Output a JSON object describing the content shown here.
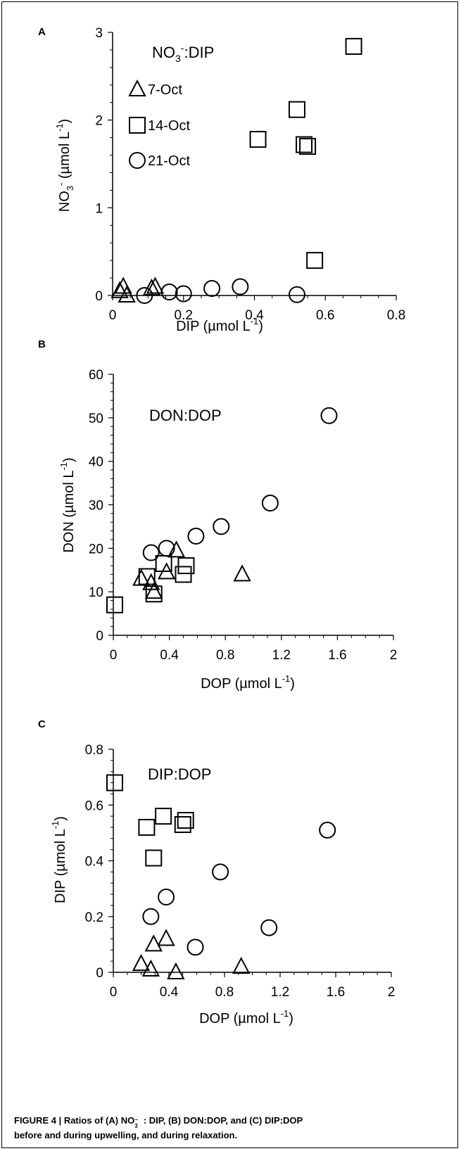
{
  "chart_data": [
    {
      "type": "scatter",
      "panel_label": "A",
      "title": "NO3-:DIP",
      "title_parts": {
        "base": "NO",
        "sub": "3",
        "sup": "-",
        "rest": ":DIP"
      },
      "xlabel": "DIP (µmol  L-1)",
      "xlabel_parts": {
        "base": "DIP (",
        "mu": "µ",
        "rest": "mol  L",
        "sup": "-1",
        "end": ")"
      },
      "ylabel": "NO3- (µmol L-1)",
      "ylabel_parts": {
        "base": "NO",
        "sub": "3",
        "sup": "-",
        "mid": " (",
        "mu": "µ",
        "rest": "mol L",
        "sup2": "-1",
        "end": ")"
      },
      "xlim": [
        0,
        0.8
      ],
      "ylim": [
        0,
        3
      ],
      "xticks": [
        "0",
        "0.2",
        "0.4",
        "0.6",
        "0.8"
      ],
      "xtick_values": [
        0,
        0.2,
        0.4,
        0.6,
        0.8
      ],
      "yticks": [
        "0",
        "1",
        "2",
        "3"
      ],
      "ytick_values": [
        0,
        1,
        2,
        3
      ],
      "legend": [
        {
          "name": "7-Oct",
          "marker": "triangle"
        },
        {
          "name": "14-Oct",
          "marker": "square"
        },
        {
          "name": "21-Oct",
          "marker": "circle"
        }
      ],
      "series": [
        {
          "name": "7-Oct",
          "marker": "triangle",
          "points": [
            [
              0.02,
              0.05
            ],
            [
              0.03,
              0.1
            ],
            [
              0.04,
              0.0
            ],
            [
              0.11,
              0.08
            ],
            [
              0.12,
              0.1
            ]
          ]
        },
        {
          "name": "14-Oct",
          "marker": "square",
          "points": [
            [
              0.41,
              1.78
            ],
            [
              0.52,
              2.12
            ],
            [
              0.54,
              1.72
            ],
            [
              0.55,
              1.7
            ],
            [
              0.57,
              0.4
            ],
            [
              0.68,
              2.84
            ]
          ]
        },
        {
          "name": "21-Oct",
          "marker": "circle",
          "points": [
            [
              0.09,
              0.0
            ],
            [
              0.16,
              0.04
            ],
            [
              0.2,
              0.02
            ],
            [
              0.28,
              0.08
            ],
            [
              0.36,
              0.1
            ],
            [
              0.52,
              0.01
            ]
          ]
        }
      ]
    },
    {
      "type": "scatter",
      "panel_label": "B",
      "title": "DON:DOP",
      "xlabel": "DOP (µmol L-1)",
      "xlabel_parts": {
        "base": "DOP (",
        "mu": "µ",
        "rest": "mol L",
        "sup": "-1",
        "end": ")"
      },
      "ylabel": "DON (µmol L-1)",
      "ylabel_parts": {
        "base": "DON (",
        "mu": "µ",
        "rest": "mol L",
        "sup": "-1",
        "end": ")"
      },
      "xlim": [
        0,
        2
      ],
      "ylim": [
        0,
        60
      ],
      "xticks": [
        "0",
        "0.4",
        "0.8",
        "1.2",
        "1.6",
        "2"
      ],
      "xtick_values": [
        0,
        0.4,
        0.8,
        1.2,
        1.6,
        2
      ],
      "yticks": [
        "0",
        "10",
        "20",
        "30",
        "40",
        "50",
        "60"
      ],
      "ytick_values": [
        0,
        10,
        20,
        30,
        40,
        50,
        60
      ],
      "series": [
        {
          "name": "7-Oct",
          "marker": "triangle",
          "points": [
            [
              0.2,
              13
            ],
            [
              0.27,
              12
            ],
            [
              0.29,
              10
            ],
            [
              0.38,
              14.5
            ],
            [
              0.45,
              19.5
            ],
            [
              0.92,
              14
            ]
          ]
        },
        {
          "name": "14-Oct",
          "marker": "square",
          "points": [
            [
              0.01,
              7
            ],
            [
              0.24,
              13.5
            ],
            [
              0.29,
              9.5
            ],
            [
              0.36,
              16.5
            ],
            [
              0.5,
              14
            ],
            [
              0.52,
              16
            ]
          ]
        },
        {
          "name": "21-Oct",
          "marker": "circle",
          "points": [
            [
              0.27,
              19
            ],
            [
              0.38,
              20
            ],
            [
              0.59,
              22.8
            ],
            [
              0.77,
              25
            ],
            [
              1.12,
              30.4
            ],
            [
              1.54,
              50.5
            ]
          ]
        }
      ]
    },
    {
      "type": "scatter",
      "panel_label": "C",
      "title": "DIP:DOP",
      "xlabel": "DOP (µmol L-1)",
      "xlabel_parts": {
        "base": "DOP (",
        "mu": "µ",
        "rest": "mol L",
        "sup": "-1",
        "end": ")"
      },
      "ylabel": "DIP (µmol L-1)",
      "ylabel_parts": {
        "base": "DIP (",
        "mu": "µ",
        "rest": "mol L",
        "sup": "-1",
        "end": ")"
      },
      "xlim": [
        0,
        2
      ],
      "ylim": [
        0,
        0.8
      ],
      "xticks": [
        "0",
        "0.4",
        "0.8",
        "1.2",
        "1.6",
        "2"
      ],
      "xtick_values": [
        0,
        0.4,
        0.8,
        1.2,
        1.6,
        2
      ],
      "yticks": [
        "0",
        "0.2",
        "0.4",
        "0.6",
        "0.8"
      ],
      "ytick_values": [
        0,
        0.2,
        0.4,
        0.6,
        0.8
      ],
      "series": [
        {
          "name": "7-Oct",
          "marker": "triangle",
          "points": [
            [
              0.2,
              0.03
            ],
            [
              0.27,
              0.01
            ],
            [
              0.29,
              0.1
            ],
            [
              0.38,
              0.12
            ],
            [
              0.45,
              0.0
            ],
            [
              0.92,
              0.02
            ]
          ]
        },
        {
          "name": "14-Oct",
          "marker": "square",
          "points": [
            [
              0.01,
              0.68
            ],
            [
              0.24,
              0.52
            ],
            [
              0.29,
              0.41
            ],
            [
              0.36,
              0.56
            ],
            [
              0.5,
              0.53
            ],
            [
              0.52,
              0.545
            ]
          ]
        },
        {
          "name": "21-Oct",
          "marker": "circle",
          "points": [
            [
              0.27,
              0.2
            ],
            [
              0.38,
              0.27
            ],
            [
              0.59,
              0.09
            ],
            [
              0.77,
              0.36
            ],
            [
              1.12,
              0.16
            ],
            [
              1.54,
              0.51
            ]
          ]
        }
      ]
    }
  ],
  "caption": {
    "prefix": "FIGURE 4 | Ratios of (A) NO",
    "sup": "−",
    "sub": "3",
    "rest1": " : DIP, (B) DON:DOP, and (C) DIP:DOP",
    "line2": "before and during upwelling, and during relaxation."
  }
}
